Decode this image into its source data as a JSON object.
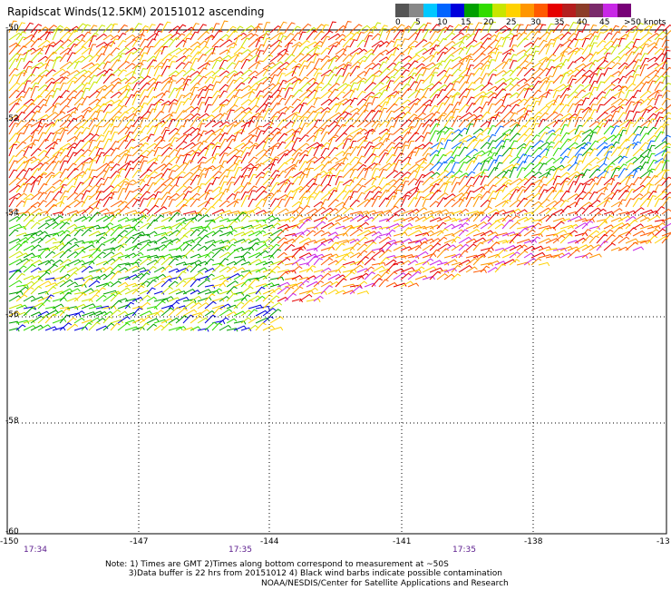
{
  "title": "Rapidscat Winds(12.5KM) 20151012 ascending",
  "legend": {
    "colors": [
      "#555555",
      "#888888",
      "#00c8ff",
      "#0064ff",
      "#0000dc",
      "#00a000",
      "#30dc00",
      "#c8e600",
      "#ffd200",
      "#ff9600",
      "#ff5a00",
      "#e60000",
      "#b41e1e",
      "#8c3c28",
      "#7a2a6a",
      "#c828e6",
      "#780078"
    ],
    "labels": [
      "0",
      "5",
      "10",
      "15",
      "20",
      "25",
      "30",
      "35",
      "40",
      "45",
      ">50 knots"
    ]
  },
  "map": {
    "lat_labels": [
      "-50",
      "-52",
      "-54",
      "-56",
      "-58",
      "-60"
    ],
    "lon_labels": [
      "-150",
      "-147",
      "-144",
      "-141",
      "-138",
      "-13"
    ],
    "time_labels": [
      "17:34",
      "17:35",
      "17:35"
    ],
    "lat_range": [
      -60,
      -50
    ],
    "lon_range": [
      -150,
      -135
    ]
  },
  "notes": "Note: 1) Times are GMT 2)Times along bottom correspond to measurement at ~50S\n         3)Data buffer is 22 hrs from 20151012 4) Black wind barbs indicate possible contamination",
  "credit": "NOAA/NESDIS/Center for Satellite Applications and Research"
}
